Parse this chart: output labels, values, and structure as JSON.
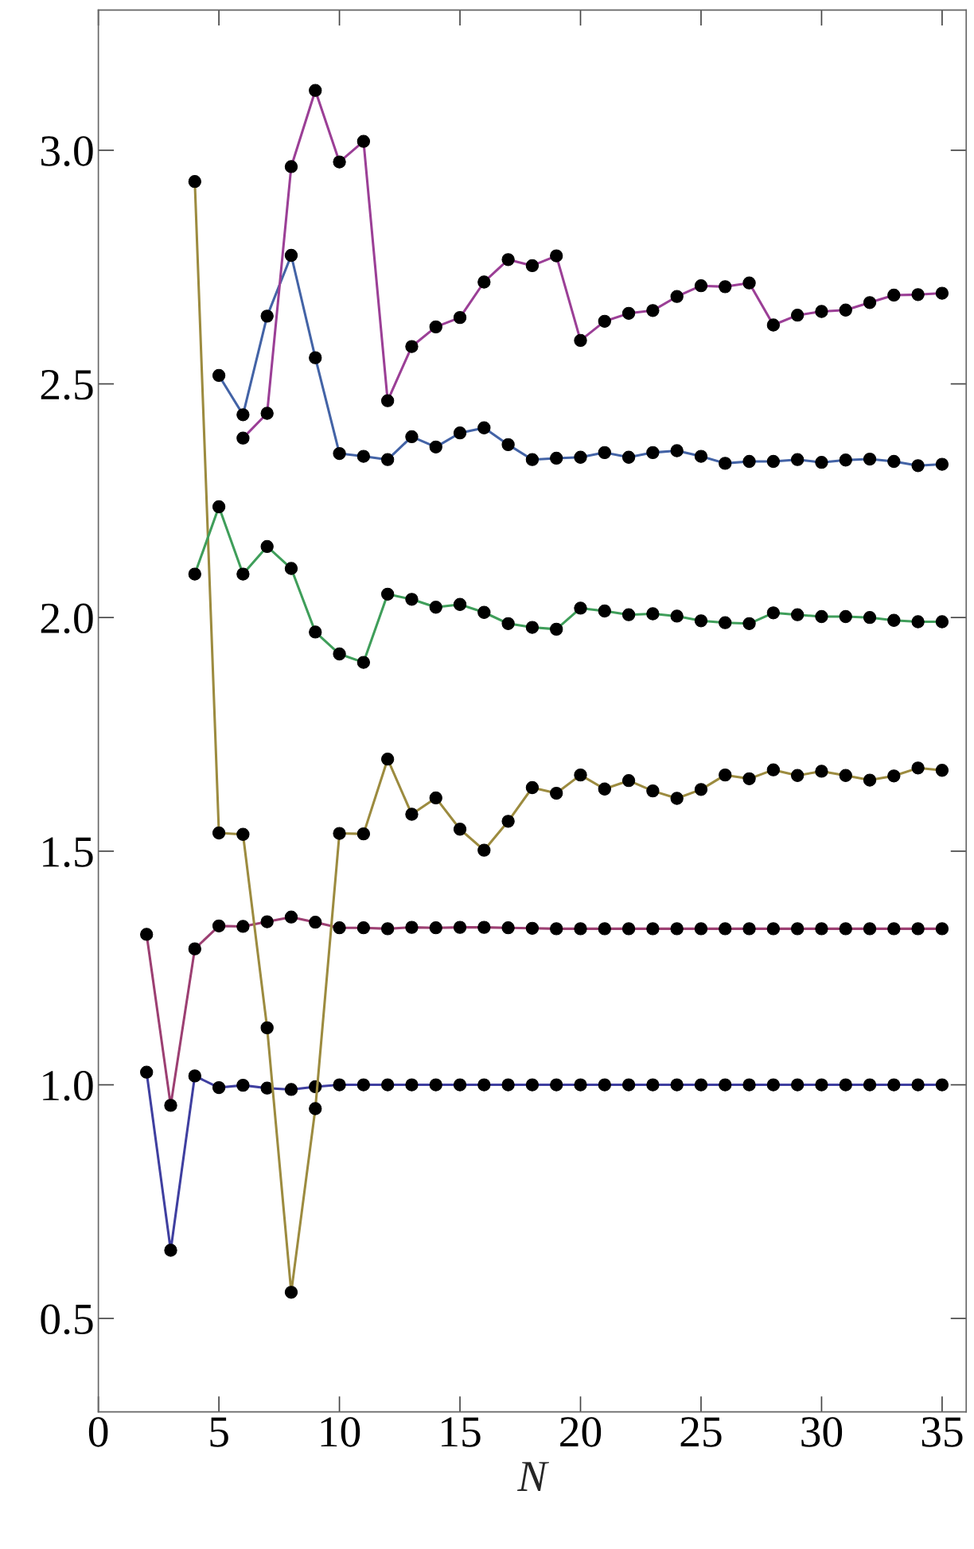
{
  "chart_data": {
    "type": "line",
    "xlabel": "N",
    "marker": "circle",
    "line_style": "solid",
    "grid": false,
    "legend": false,
    "xlim": [
      0,
      36
    ],
    "ylim": [
      0.3,
      3.3
    ],
    "xticks": [
      0,
      5,
      10,
      15,
      20,
      25,
      30,
      35
    ],
    "yticks": [
      {
        "value": 0.5,
        "label": "0.5"
      },
      {
        "value": 1,
        "label": "1.0"
      },
      {
        "value": 1.5,
        "label": "1.5"
      },
      {
        "value": 2,
        "label": "2.0"
      },
      {
        "value": 2.5,
        "label": "2.5"
      },
      {
        "value": 3,
        "label": "3.0"
      }
    ],
    "series": [
      {
        "color": "#3f3fa0",
        "x": [
          2,
          3,
          4,
          5,
          6,
          7,
          8,
          9,
          10,
          11,
          12,
          13,
          14,
          15,
          16,
          17,
          18,
          19,
          20,
          21,
          22,
          23,
          24,
          25,
          26,
          27,
          28,
          29,
          30,
          31,
          32,
          33,
          34,
          35
        ],
        "values": [
          1.027,
          0.646,
          1.019,
          0.994,
          0.999,
          0.993,
          0.99,
          0.996,
          1.0,
          1.0,
          1.0,
          1.0,
          1.0,
          1.0,
          1.0,
          1.0,
          1.0,
          1.0,
          1.0,
          1.0,
          1.0,
          1.0,
          1.0,
          1.0,
          1.0,
          1.0,
          1.0,
          1.0,
          1.0,
          1.0,
          1.0,
          1.0,
          1.0,
          1.0
        ]
      },
      {
        "color": "#9c3f72",
        "x": [
          2,
          3,
          4,
          5,
          6,
          7,
          8,
          9,
          10,
          11,
          12,
          13,
          14,
          15,
          16,
          17,
          18,
          19,
          20,
          21,
          22,
          23,
          24,
          25,
          26,
          27,
          28,
          29,
          30,
          31,
          32,
          33,
          34,
          35
        ],
        "values": [
          1.322,
          0.956,
          1.291,
          1.34,
          1.339,
          1.349,
          1.359,
          1.348,
          1.336,
          1.336,
          1.334,
          1.337,
          1.336,
          1.337,
          1.337,
          1.336,
          1.335,
          1.334,
          1.334,
          1.334,
          1.334,
          1.334,
          1.334,
          1.334,
          1.334,
          1.334,
          1.334,
          1.334,
          1.334,
          1.334,
          1.334,
          1.334,
          1.334,
          1.334
        ]
      },
      {
        "color": "#9c8b3f",
        "x": [
          4,
          5,
          6,
          7,
          8,
          9,
          10,
          11,
          12,
          13,
          14,
          15,
          16,
          17,
          18,
          19,
          20,
          21,
          22,
          23,
          24,
          25,
          26,
          27,
          28,
          29,
          30,
          31,
          32,
          33,
          34,
          35
        ],
        "values": [
          2.933,
          1.539,
          1.536,
          1.122,
          0.556,
          0.949,
          1.538,
          1.537,
          1.697,
          1.579,
          1.614,
          1.547,
          1.502,
          1.564,
          1.636,
          1.624,
          1.663,
          1.633,
          1.651,
          1.629,
          1.613,
          1.632,
          1.663,
          1.655,
          1.674,
          1.662,
          1.671,
          1.662,
          1.652,
          1.661,
          1.678,
          1.673
        ]
      },
      {
        "color": "#3f9e5a",
        "x": [
          4,
          5,
          6,
          7,
          8,
          9,
          10,
          11,
          12,
          13,
          14,
          15,
          16,
          17,
          18,
          19,
          20,
          21,
          22,
          23,
          24,
          25,
          26,
          27,
          28,
          29,
          30,
          31,
          32,
          33,
          34,
          35
        ],
        "values": [
          2.093,
          2.237,
          2.093,
          2.152,
          2.105,
          1.969,
          1.922,
          1.904,
          2.05,
          2.039,
          2.022,
          2.028,
          2.011,
          1.987,
          1.979,
          1.975,
          2.02,
          2.014,
          2.006,
          2.008,
          2.003,
          1.993,
          1.989,
          1.987,
          2.01,
          2.006,
          2.002,
          2.002,
          2.0,
          1.994,
          1.991,
          1.991
        ]
      },
      {
        "color": "#4363a6",
        "x": [
          5,
          6,
          7,
          8,
          9,
          10,
          11,
          12,
          13,
          14,
          15,
          16,
          17,
          18,
          19,
          20,
          21,
          22,
          23,
          24,
          25,
          26,
          27,
          28,
          29,
          30,
          31,
          32,
          33,
          34,
          35
        ],
        "values": [
          2.518,
          2.434,
          2.645,
          2.775,
          2.556,
          2.351,
          2.345,
          2.338,
          2.387,
          2.365,
          2.395,
          2.406,
          2.37,
          2.338,
          2.341,
          2.343,
          2.353,
          2.343,
          2.353,
          2.357,
          2.345,
          2.33,
          2.334,
          2.334,
          2.338,
          2.332,
          2.337,
          2.339,
          2.334,
          2.325,
          2.328
        ]
      },
      {
        "color": "#9b3f96",
        "x": [
          6,
          7,
          8,
          9,
          10,
          11,
          12,
          13,
          14,
          15,
          16,
          17,
          18,
          19,
          20,
          21,
          22,
          23,
          24,
          25,
          26,
          27,
          28,
          29,
          30,
          31,
          32,
          33,
          34,
          35
        ],
        "values": [
          2.384,
          2.437,
          2.965,
          3.128,
          2.975,
          3.019,
          2.464,
          2.58,
          2.622,
          2.642,
          2.718,
          2.766,
          2.753,
          2.774,
          2.593,
          2.634,
          2.651,
          2.657,
          2.687,
          2.71,
          2.708,
          2.716,
          2.626,
          2.647,
          2.655,
          2.658,
          2.674,
          2.69,
          2.691,
          2.694
        ]
      }
    ]
  }
}
